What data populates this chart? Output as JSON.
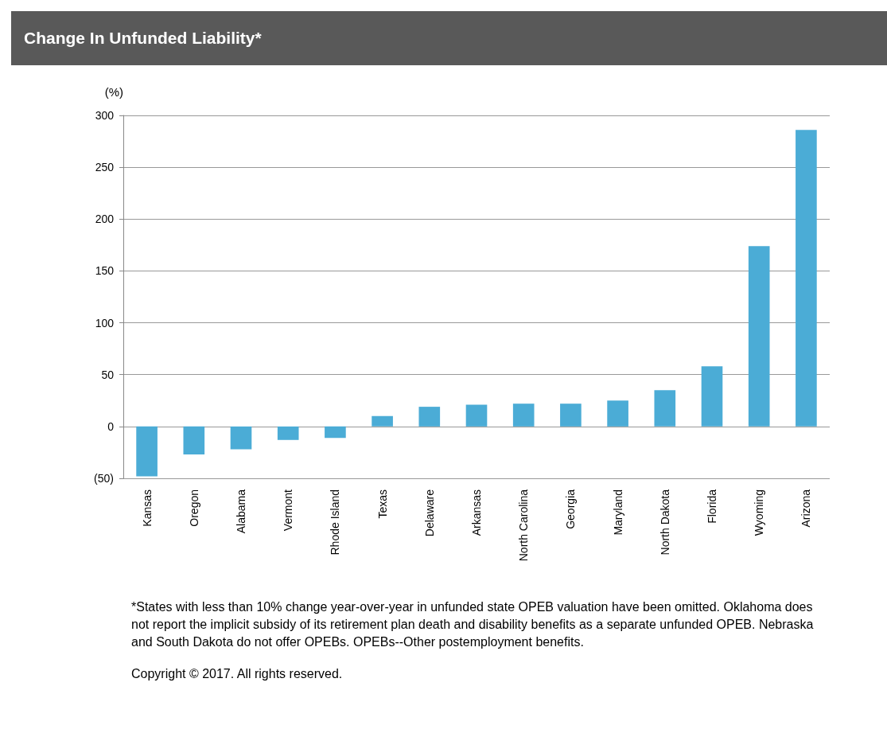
{
  "chart_data": {
    "type": "bar",
    "title": "Change In Unfunded Liability*",
    "ylabel": "(%)",
    "categories": [
      "Kansas",
      "Oregon",
      "Alabama",
      "Vermont",
      "Rhode Island",
      "Texas",
      "Delaware",
      "Arkansas",
      "North Carolina",
      "Georgia",
      "Maryland",
      "North Dakota",
      "Florida",
      "Wyoming",
      "Arizona"
    ],
    "values": [
      -48,
      -27,
      -22,
      -13,
      -11,
      10,
      19,
      21,
      22,
      22,
      25,
      35,
      58,
      174,
      286
    ],
    "color": "#4bacd6",
    "ylim": [
      -50,
      300
    ],
    "yticks": [
      {
        "value": -50,
        "label": "(50)"
      },
      0,
      50,
      100,
      150,
      200,
      250,
      300
    ],
    "grid": "y",
    "annotations": [
      "*States with less than 10% change year-over-year in unfunded state OPEB valuation have been omitted. Oklahoma does not report the implicit subsidy of its retirement plan death and disability benefits as a separate unfunded OPEB. Nebraska and South Dakota do not offer OPEBs. OPEBs--Other postemployment benefits.",
      "Copyright © 2017. All rights reserved."
    ]
  }
}
